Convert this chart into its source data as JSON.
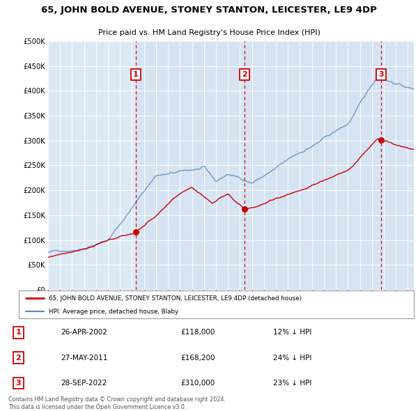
{
  "title": "65, JOHN BOLD AVENUE, STONEY STANTON, LEICESTER, LE9 4DP",
  "subtitle": "Price paid vs. HM Land Registry's House Price Index (HPI)",
  "legend_label_red": "65, JOHN BOLD AVENUE, STONEY STANTON, LEICESTER, LE9 4DP (detached house)",
  "legend_label_blue": "HPI: Average price, detached house, Blaby",
  "footer1": "Contains HM Land Registry data © Crown copyright and database right 2024.",
  "footer2": "This data is licensed under the Open Government Licence v3.0.",
  "sales": [
    {
      "num": 1,
      "date": "26-APR-2002",
      "price": 118000,
      "price_str": "£118,000",
      "pct": "12%",
      "dir": "↓",
      "year": 2002.32
    },
    {
      "num": 2,
      "date": "27-MAY-2011",
      "price": 168200,
      "price_str": "£168,200",
      "pct": "24%",
      "dir": "↓",
      "year": 2011.41
    },
    {
      "num": 3,
      "date": "28-SEP-2022",
      "price": 310000,
      "price_str": "£310,000",
      "pct": "23%",
      "dir": "↓",
      "year": 2022.75
    }
  ],
  "ylim": [
    0,
    500000
  ],
  "yticks": [
    0,
    50000,
    100000,
    150000,
    200000,
    250000,
    300000,
    350000,
    400000,
    450000,
    500000
  ],
  "xlim_start": 1995.0,
  "xlim_end": 2025.5,
  "bg_color": "#dce9f5",
  "plot_bg": "#e8f0fa",
  "grid_color": "#c8d8ea",
  "red_color": "#cc0000",
  "blue_color": "#5588bb",
  "dashed_color": "#cc0000",
  "sale_bg_color": "#dce9f8"
}
